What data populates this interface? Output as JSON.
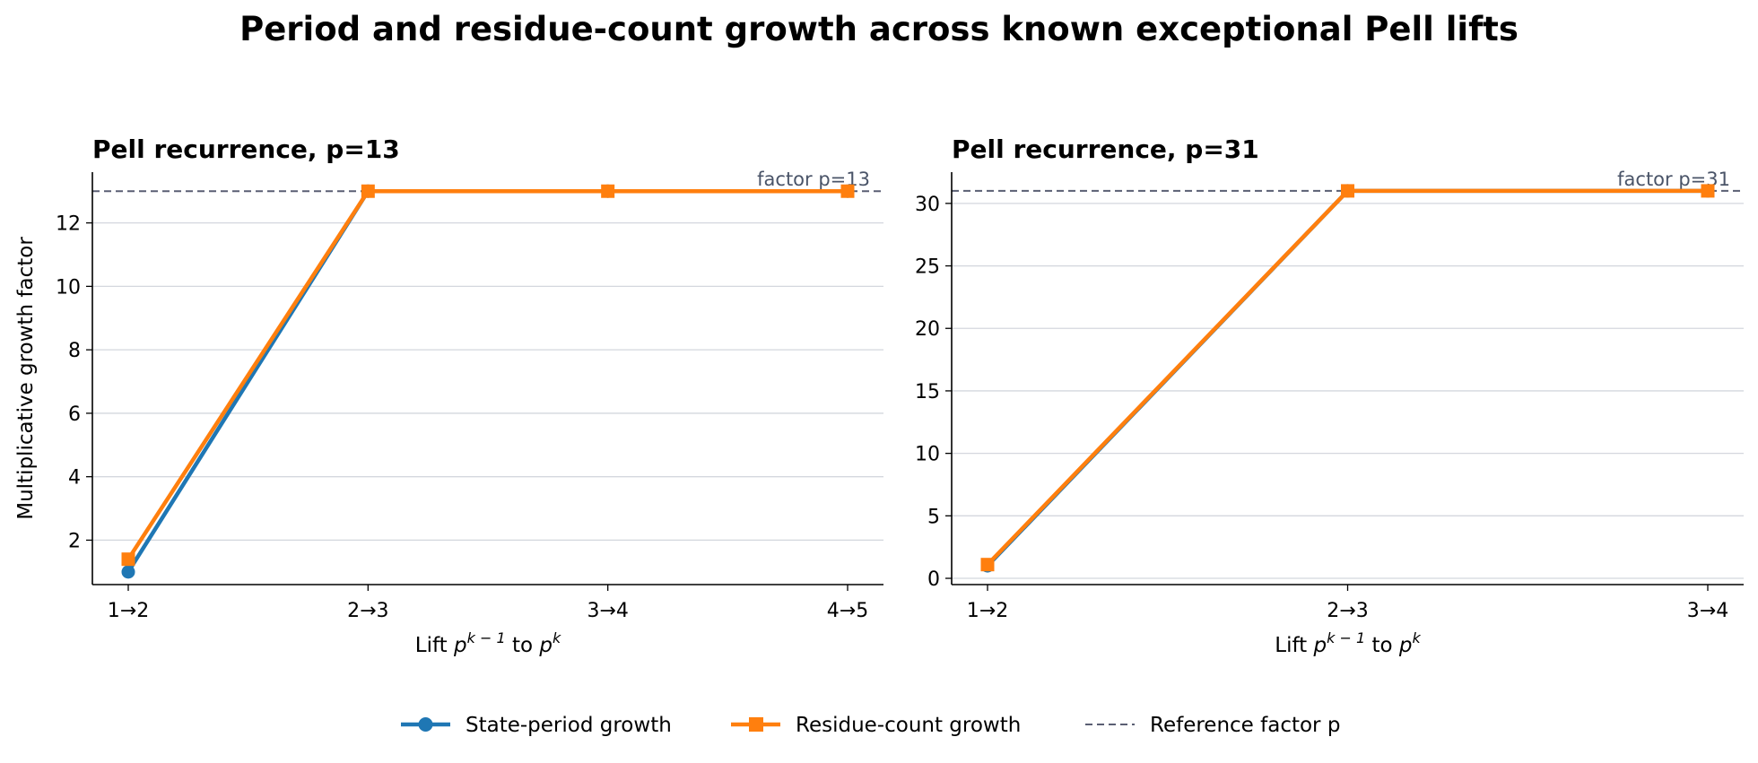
{
  "title": "Period and residue-count growth across known exceptional Pell lifts",
  "legend": {
    "placement": "bottom-center",
    "entries": [
      {
        "label": "State-period growth",
        "color": "#1f77b4",
        "marker": "circle",
        "style": "solid"
      },
      {
        "label": "Residue-count growth",
        "color": "#ff7f0e",
        "marker": "square",
        "style": "solid"
      },
      {
        "label": "Reference factor p",
        "color": "#5a5f73",
        "marker": "none",
        "style": "dashed"
      }
    ]
  },
  "colors": {
    "state": "#1f77b4",
    "residue": "#ff7f0e",
    "reference": "#5a5f73",
    "grid": "#d4d7de"
  },
  "chart_data": [
    {
      "type": "line",
      "title": "Pell recurrence, p=13",
      "xlabel_parts": {
        "pre": "Lift ",
        "base1": "p",
        "sup1": "k − 1",
        "mid": " to ",
        "base2": "p",
        "sup2": "k"
      },
      "ylabel": "Multiplicative growth factor",
      "categories": [
        "1→2",
        "2→3",
        "3→4",
        "4→5"
      ],
      "ylim": [
        0.6,
        13.6
      ],
      "yticks": [
        2,
        4,
        6,
        8,
        10,
        12
      ],
      "grid": "horizontal",
      "reference": {
        "value": 13,
        "label": "factor p=13"
      },
      "series": [
        {
          "name": "State-period growth",
          "values": [
            1,
            13,
            13,
            13
          ]
        },
        {
          "name": "Residue-count growth",
          "values": [
            1.4,
            13,
            13,
            13
          ]
        }
      ]
    },
    {
      "type": "line",
      "title": "Pell recurrence, p=31",
      "xlabel_parts": {
        "pre": "Lift ",
        "base1": "p",
        "sup1": "k − 1",
        "mid": " to ",
        "base2": "p",
        "sup2": "k"
      },
      "ylabel": "",
      "categories": [
        "1→2",
        "2→3",
        "3→4"
      ],
      "ylim": [
        -0.5,
        32.5
      ],
      "yticks": [
        0,
        5,
        10,
        15,
        20,
        25,
        30
      ],
      "grid": "horizontal",
      "reference": {
        "value": 31,
        "label": "factor p=31"
      },
      "series": [
        {
          "name": "State-period growth",
          "values": [
            1,
            31,
            31
          ]
        },
        {
          "name": "Residue-count growth",
          "values": [
            1.1,
            31,
            31
          ]
        }
      ]
    }
  ]
}
